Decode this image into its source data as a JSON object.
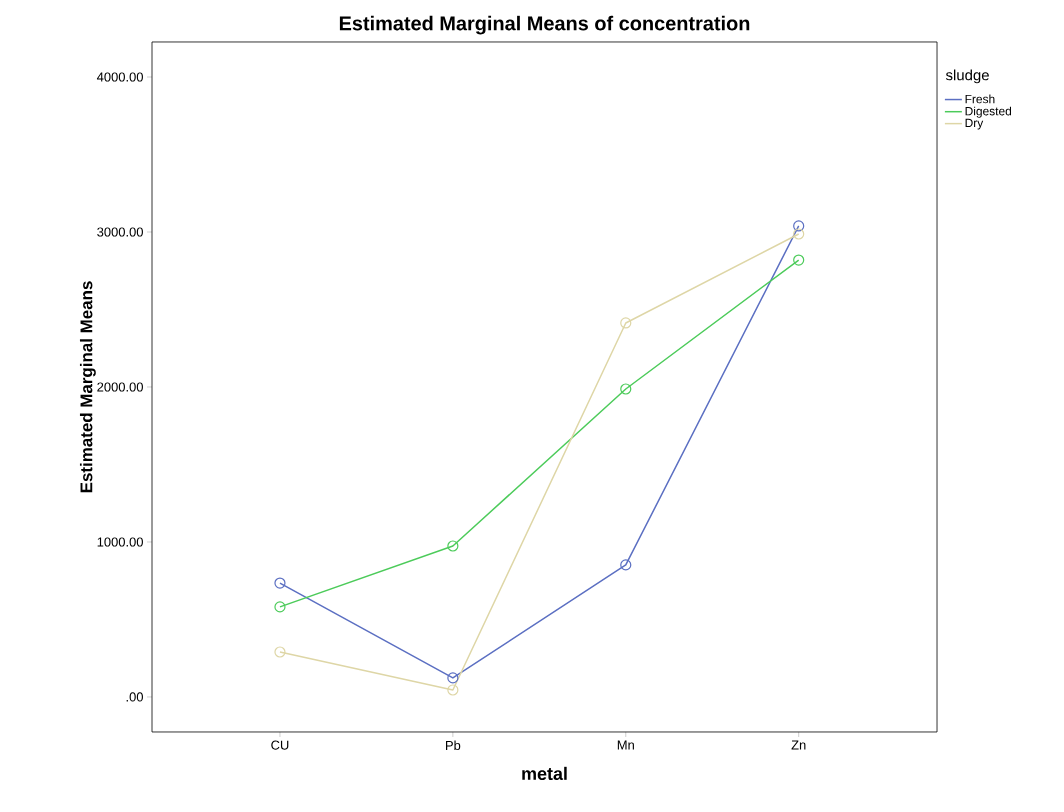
{
  "chart_data": {
    "type": "line",
    "title": "Estimated Marginal Means of concentration",
    "xlabel": "metal",
    "ylabel": "Estimated Marginal Means",
    "legend_title": "sludge",
    "categories": [
      "CU",
      "Pb",
      "Mn",
      "Zn"
    ],
    "series": [
      {
        "name": "Fresh",
        "color": "#5b6fc2",
        "values": [
          735,
          123,
          852,
          3039
        ]
      },
      {
        "name": "Digested",
        "color": "#4ccb5a",
        "values": [
          581,
          974,
          1987,
          2819
        ]
      },
      {
        "name": "Dry",
        "color": "#ded6a6",
        "values": [
          290,
          45,
          2413,
          2987
        ]
      }
    ],
    "ylim": [
      -226,
      4226
    ],
    "yticks": [
      {
        "value": 0,
        "label": ".00"
      },
      {
        "value": 1000,
        "label": "1000.00"
      },
      {
        "value": 2000,
        "label": "2000.00"
      },
      {
        "value": 3000,
        "label": "3000.00"
      },
      {
        "value": 4000,
        "label": "4000.00"
      }
    ],
    "legend": "top right",
    "marker": "circle",
    "line_style": "solid",
    "grid": false
  }
}
